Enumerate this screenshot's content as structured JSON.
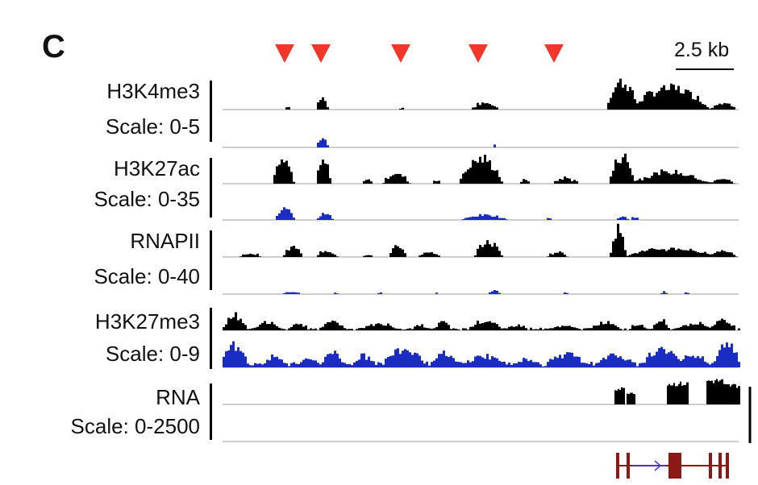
{
  "panel_label": "C",
  "scale_bar": {
    "label": "2.5 kb"
  },
  "colors": {
    "marker": "#f2362a",
    "upper_track": "#000000",
    "lower_track": "#1a2cc4",
    "baseline": "#bdbdbd",
    "gene": "#8b1a14",
    "gene_arrow": "#3c3ce0"
  },
  "markers_icon": "triangle-down-icon",
  "marker_count": 5,
  "groups": [
    {
      "name": "H3K4me3",
      "scale": "Scale: 0-5"
    },
    {
      "name": "H3K27ac",
      "scale": "Scale: 0-35"
    },
    {
      "name": "RNAPII",
      "scale": "Scale: 0-40"
    },
    {
      "name": "H3K27me3",
      "scale": "Scale: 0-9"
    },
    {
      "name": "RNA",
      "scale": "Scale: 0-2500"
    }
  ]
}
